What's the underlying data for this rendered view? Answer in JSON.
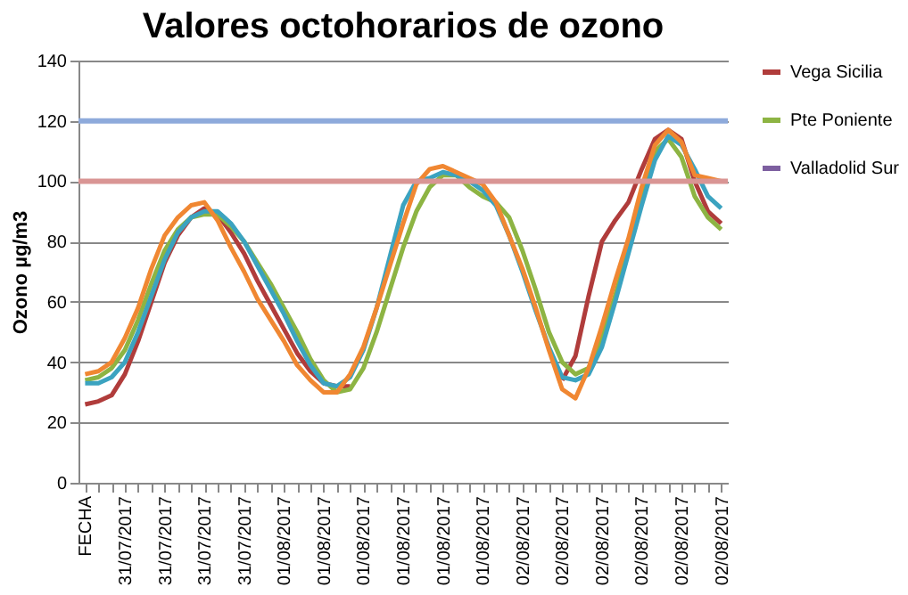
{
  "chart_data": {
    "type": "line",
    "title": "Valores octohorarios de ozono",
    "ylabel": "Ozono µg/m3",
    "categories": [
      "FECHA",
      null,
      null,
      "31/07/2017",
      null,
      null,
      "31/07/2017",
      null,
      null,
      "31/07/2017",
      null,
      null,
      "31/07/2017",
      null,
      null,
      "01/08/2017",
      null,
      null,
      "01/08/2017",
      null,
      null,
      "01/08/2017",
      null,
      null,
      "01/08/2017",
      null,
      null,
      "01/08/2017",
      null,
      null,
      "01/08/2017",
      null,
      null,
      "02/08/2017",
      null,
      null,
      "02/08/2017",
      null,
      null,
      "02/08/2017",
      null,
      null,
      "02/08/2017",
      null,
      null,
      "02/08/2017",
      null,
      null,
      "02/08/2017"
    ],
    "series": [
      {
        "name": "Vega Sicilia",
        "color": "#b03c3b",
        "values": [
          26,
          27,
          29,
          36,
          47,
          60,
          73,
          82,
          88,
          91,
          89,
          83,
          76,
          67,
          59,
          51,
          43,
          37,
          33,
          32,
          32,
          null,
          null,
          null,
          null,
          null,
          null,
          null,
          null,
          null,
          null,
          null,
          null,
          null,
          null,
          null,
          34,
          42,
          62,
          80,
          87,
          93,
          104,
          114,
          117,
          114,
          100,
          90,
          86
        ]
      },
      {
        "name": "Pte Poniente",
        "color": "#8db443",
        "values": [
          34,
          35,
          38,
          44,
          54,
          66,
          77,
          84,
          88,
          89,
          89,
          85,
          80,
          73,
          66,
          58,
          50,
          41,
          34,
          30,
          31,
          38,
          50,
          64,
          78,
          90,
          98,
          102,
          102,
          98,
          95,
          93,
          88,
          77,
          64,
          50,
          40,
          36,
          38,
          48,
          62,
          78,
          96,
          110,
          114,
          108,
          95,
          88,
          84
        ]
      },
      {
        "name": "Valladolid Sur",
        "color": "#7d5fa0",
        "values": [
          null,
          null,
          null,
          null,
          null,
          null,
          null,
          null,
          null,
          null,
          null,
          null,
          null,
          null,
          null,
          null,
          null,
          null,
          null,
          null,
          null,
          null,
          null,
          null,
          null,
          null,
          null,
          null,
          null,
          null,
          null,
          null,
          null,
          null,
          null,
          null,
          null,
          null,
          null,
          null,
          null,
          null,
          null,
          null,
          null,
          null,
          null,
          null,
          null
        ]
      },
      {
        "color": "#3ba3c0",
        "values": [
          33,
          33,
          35,
          40,
          50,
          62,
          74,
          83,
          88,
          90,
          90,
          86,
          80,
          72,
          64,
          56,
          47,
          39,
          33,
          32,
          35,
          44,
          58,
          75,
          92,
          100,
          101,
          103,
          102,
          100,
          97,
          92,
          82,
          70,
          57,
          45,
          35,
          34,
          36,
          45,
          60,
          76,
          92,
          107,
          115,
          112,
          104,
          95,
          91
        ]
      },
      {
        "color": "#f08732",
        "values": [
          36,
          37,
          40,
          48,
          58,
          71,
          82,
          88,
          92,
          93,
          87,
          78,
          70,
          61,
          54,
          47,
          39,
          34,
          30,
          30,
          36,
          45,
          58,
          72,
          86,
          99,
          104,
          105,
          103,
          101,
          99,
          93,
          82,
          71,
          58,
          44,
          31,
          28,
          38,
          52,
          67,
          81,
          98,
          112,
          117,
          113,
          102,
          101,
          100
        ]
      }
    ],
    "ylim": [
      0,
      140
    ],
    "yticks": [
      0,
      20,
      40,
      60,
      80,
      100,
      120,
      140
    ],
    "ref_lines": [
      {
        "axis": "y",
        "value": 120,
        "color": "#8eaadb"
      },
      {
        "axis": "y",
        "value": 100,
        "color": "#d99594"
      }
    ],
    "grid": "y",
    "legend": "right",
    "marker": "none",
    "line_style": "solid"
  }
}
